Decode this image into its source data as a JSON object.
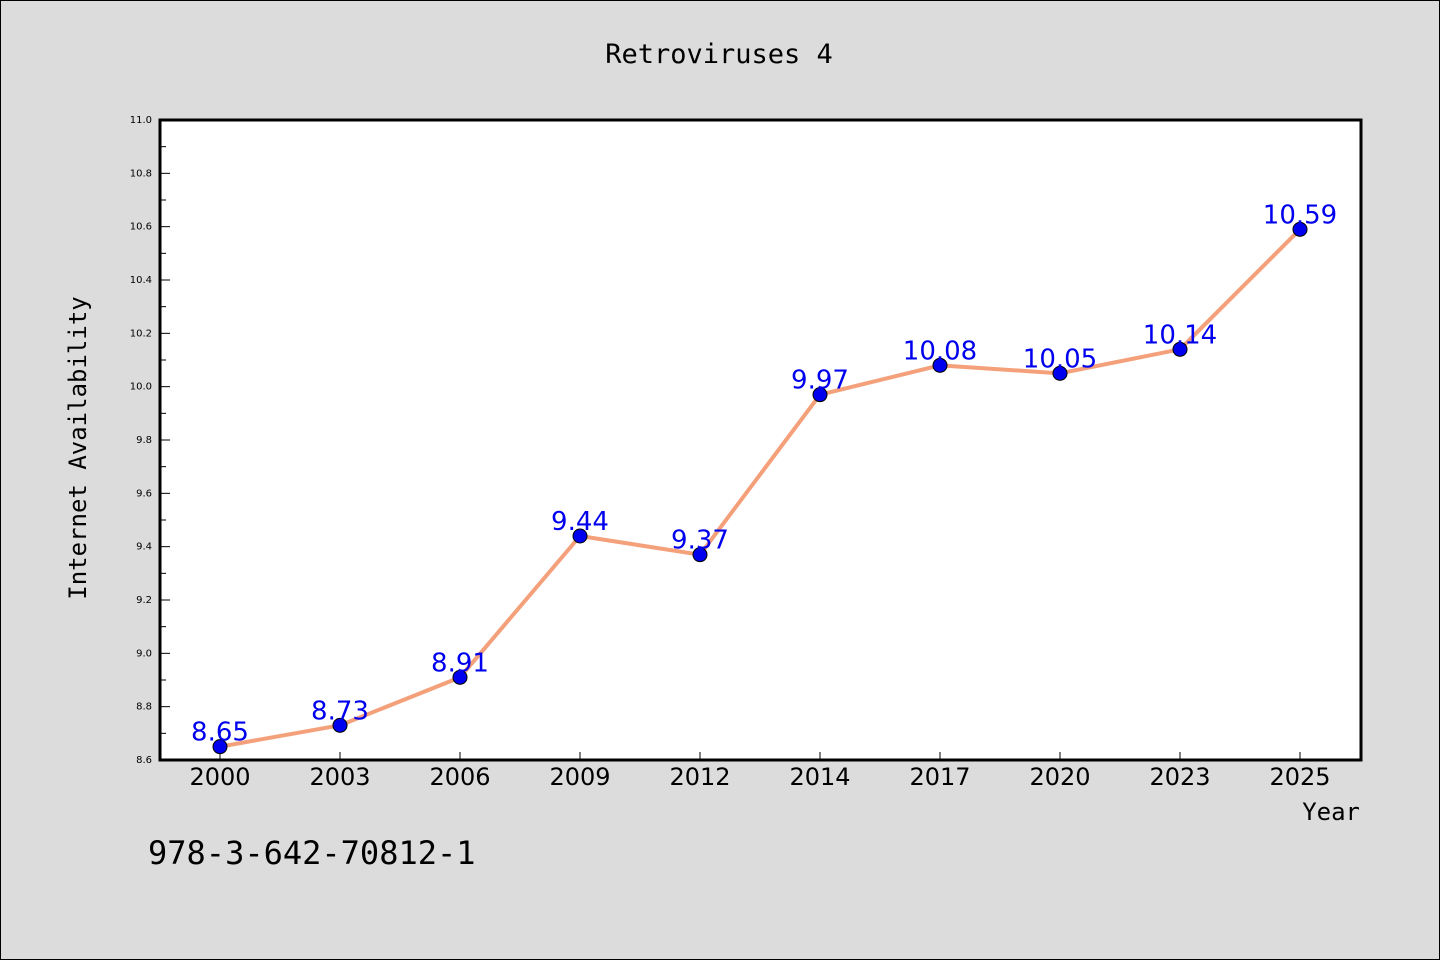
{
  "chart_data": {
    "type": "line",
    "title": "Retroviruses 4",
    "xlabel": "Year",
    "ylabel": "Internet Availability",
    "categories": [
      "2000",
      "2003",
      "2006",
      "2009",
      "2012",
      "2014",
      "2017",
      "2020",
      "2023",
      "2025"
    ],
    "series": [
      {
        "values": [
          8.65,
          8.73,
          8.91,
          9.44,
          9.37,
          9.97,
          10.08,
          10.05,
          10.14,
          10.59
        ]
      }
    ],
    "ylim": [
      8.6,
      11.0
    ],
    "yticks": [
      "8.6",
      "8.8",
      "9.0",
      "9.2",
      "9.4",
      "9.6",
      "9.8",
      "10.0",
      "10.2",
      "10.4",
      "10.6",
      "10.8",
      "11.0"
    ],
    "data_labels": [
      "8.65",
      "8.73",
      "8.91",
      "9.44",
      "9.37",
      "9.97",
      "10.08",
      "10.05",
      "10.14",
      "10.59"
    ],
    "grid": false,
    "line_color": "#f4a07a",
    "marker_color": "#0000ee",
    "label_color": "#0000ee"
  },
  "footnote": "978-3-642-70812-1"
}
